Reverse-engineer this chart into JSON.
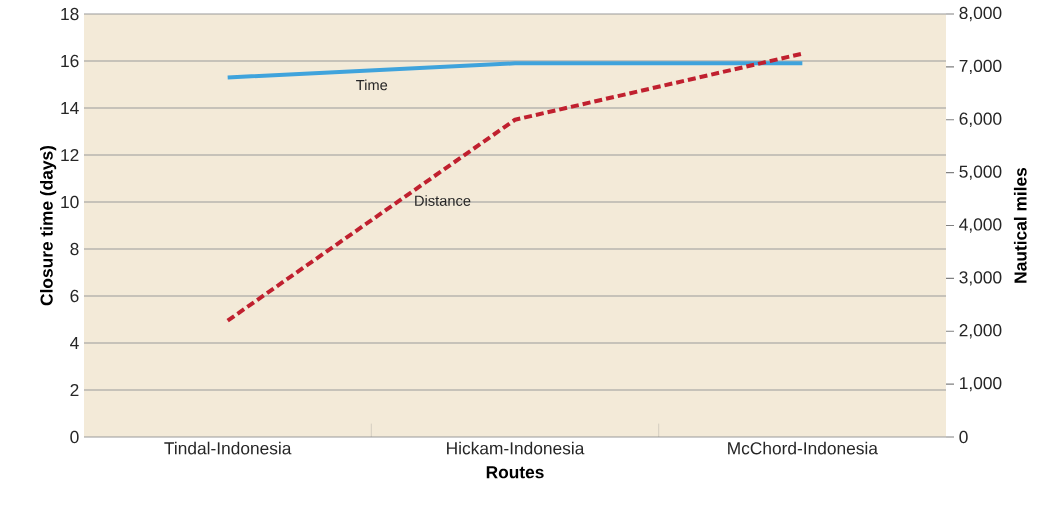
{
  "chart_data": {
    "type": "line",
    "xlabel": "Routes",
    "ylabel": "Closure time (days)",
    "y2label": "Nautical miles",
    "categories": [
      "Tindal-Indonesia",
      "Hickam-Indonesia",
      "McChord-Indonesia"
    ],
    "series": [
      {
        "name": "Time",
        "color": "#3fa3dc",
        "values": [
          15.3,
          15.9,
          15.9
        ],
        "line_style": "solid"
      },
      {
        "name": "Distance",
        "color": "#c0202f",
        "values": [
          2200,
          6000,
          7250
        ],
        "axis": "y2",
        "line_style": "dashed"
      }
    ],
    "ylim": [
      0,
      18
    ],
    "yticks": [
      0,
      2,
      4,
      6,
      8,
      10,
      12,
      14,
      16,
      18
    ],
    "y2lim": [
      0,
      8000
    ],
    "y2ticks": [
      0,
      {
        "value": 1000,
        "label": "1,000"
      },
      {
        "value": 2000,
        "label": "2,000"
      },
      {
        "value": 3000,
        "label": "3,000"
      },
      {
        "value": 4000,
        "label": "4,000"
      },
      {
        "value": 5000,
        "label": "5,000"
      },
      {
        "value": 6000,
        "label": "6,000"
      },
      {
        "value": 7000,
        "label": "7,000"
      },
      {
        "value": 8000,
        "label": "8,000"
      }
    ],
    "grid": "y",
    "marker": "none"
  }
}
